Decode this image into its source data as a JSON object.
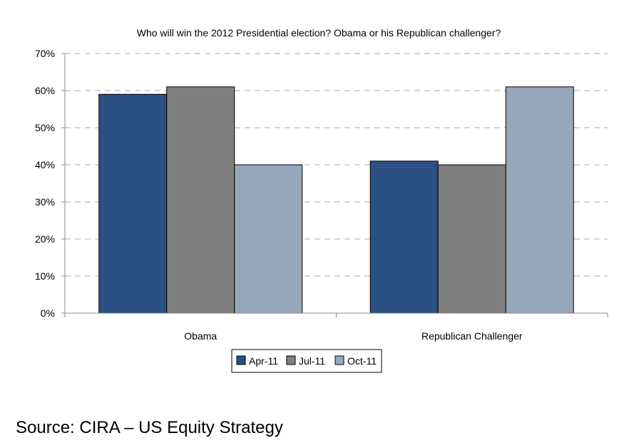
{
  "chart_data": {
    "type": "bar",
    "title": "Who will win the 2012 Presidential election? Obama or his Republican challenger?",
    "categories": [
      "Obama",
      "Republican Challenger"
    ],
    "series": [
      {
        "name": "Apr-11",
        "values": [
          59,
          41
        ],
        "color": "#2b5084"
      },
      {
        "name": "Jul-11",
        "values": [
          61,
          40
        ],
        "color": "#7f7f7f"
      },
      {
        "name": "Oct-11",
        "values": [
          40,
          61
        ],
        "color": "#96a7bc"
      }
    ],
    "ylim": [
      0,
      70
    ],
    "yticks": [
      0,
      10,
      20,
      30,
      40,
      50,
      60,
      70
    ],
    "ytick_labels": [
      "0%",
      "10%",
      "20%",
      "30%",
      "40%",
      "50%",
      "60%",
      "70%"
    ],
    "xlabel": "",
    "ylabel": "",
    "grid": true,
    "legend_position": "bottom"
  },
  "source": "Source: CIRA – US Equity Strategy"
}
